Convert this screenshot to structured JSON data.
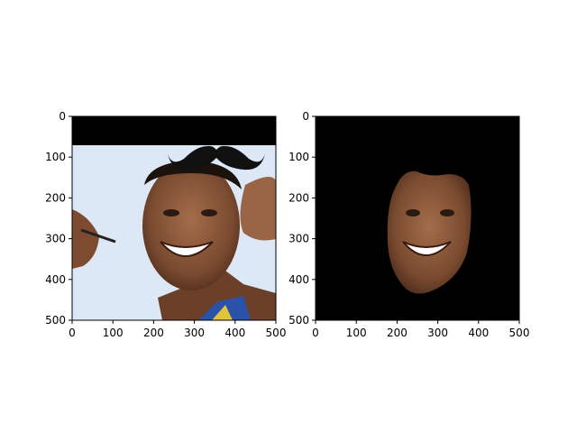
{
  "chart_data": [
    {
      "type": "image",
      "title": "",
      "xlabel": "",
      "ylabel": "",
      "xlim": [
        0,
        500
      ],
      "ylim": [
        500,
        0
      ],
      "xticks": [
        0,
        100,
        200,
        300,
        400,
        500
      ],
      "yticks": [
        0,
        100,
        200,
        300,
        400,
        500
      ],
      "content": "photo of smiling man with a mustache overlay above the head",
      "colors": {
        "sky": "#dde8f6",
        "skin": "#8a5a3c",
        "bar": "#000000"
      }
    },
    {
      "type": "image",
      "title": "",
      "xlabel": "",
      "ylabel": "",
      "xlim": [
        0,
        500
      ],
      "ylim": [
        500,
        0
      ],
      "xticks": [
        0,
        100,
        200,
        300,
        400,
        500
      ],
      "yticks": [
        0,
        100,
        200,
        300,
        400,
        500
      ],
      "content": "face segmentation mask on black background",
      "colors": {
        "background": "#000000",
        "skin": "#8a5a3c"
      }
    }
  ]
}
